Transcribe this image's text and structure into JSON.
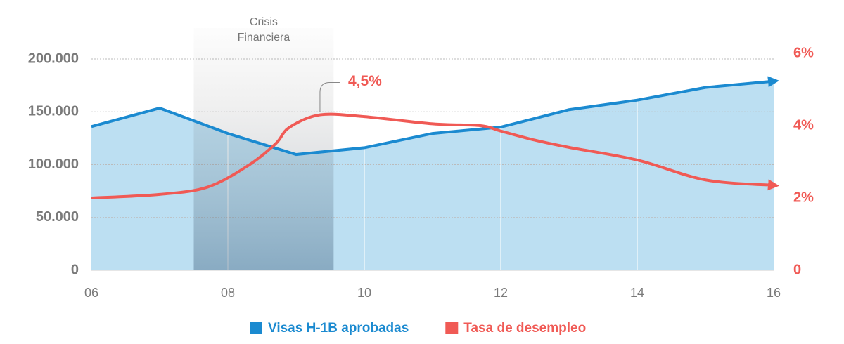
{
  "chart_data": {
    "type": "line",
    "ylim": [
      0,
      200000
    ],
    "yticks": [
      {
        "value": 0,
        "label": "0"
      },
      {
        "value": 50000,
        "label": "50.000"
      },
      {
        "value": 100000,
        "label": "100.000"
      },
      {
        "value": 150000,
        "label": "150.000"
      },
      {
        "value": 200000,
        "label": "200.000"
      }
    ],
    "y2lim": [
      0,
      6
    ],
    "y2ticks": [
      {
        "value": 0,
        "label": "0"
      },
      {
        "value": 2,
        "label": "2%"
      },
      {
        "value": 4,
        "label": "4%"
      },
      {
        "value": 6,
        "label": "6%"
      }
    ],
    "xlim": [
      6,
      16
    ],
    "xticks": [
      {
        "value": 6,
        "label": "06"
      },
      {
        "value": 8,
        "label": "08"
      },
      {
        "value": 10,
        "label": "10"
      },
      {
        "value": 12,
        "label": "12"
      },
      {
        "value": 14,
        "label": "14"
      },
      {
        "value": 16,
        "label": "16"
      }
    ],
    "grid": true,
    "highlight": {
      "lines": [
        "Crisis",
        "Financiera"
      ],
      "xrange": [
        7.5,
        9.55
      ]
    },
    "annotation": "4,5%",
    "series": [
      {
        "name": "Visas H-1B aprobadas",
        "color": "#1b8ad0",
        "fill": "#bcdff2",
        "x": [
          6,
          7,
          8,
          9,
          10,
          11,
          12,
          13,
          14,
          15,
          16
        ],
        "values": [
          136000,
          153500,
          129500,
          109600,
          116000,
          129500,
          135500,
          152000,
          161000,
          173000,
          179000
        ]
      },
      {
        "name": "Tasa de desempleo",
        "color": "#f05a55",
        "axis": "y2",
        "x": [
          6,
          7,
          7.7,
          8.3,
          8.7,
          8.9,
          9.35,
          10,
          11,
          11.7,
          12,
          12.5,
          13,
          14,
          15,
          16
        ],
        "values": [
          2.0,
          2.1,
          2.3,
          2.9,
          3.5,
          3.95,
          4.3,
          4.25,
          4.05,
          4.0,
          3.85,
          3.6,
          3.4,
          3.05,
          2.5,
          2.35
        ]
      }
    ],
    "legend": "bottom"
  }
}
